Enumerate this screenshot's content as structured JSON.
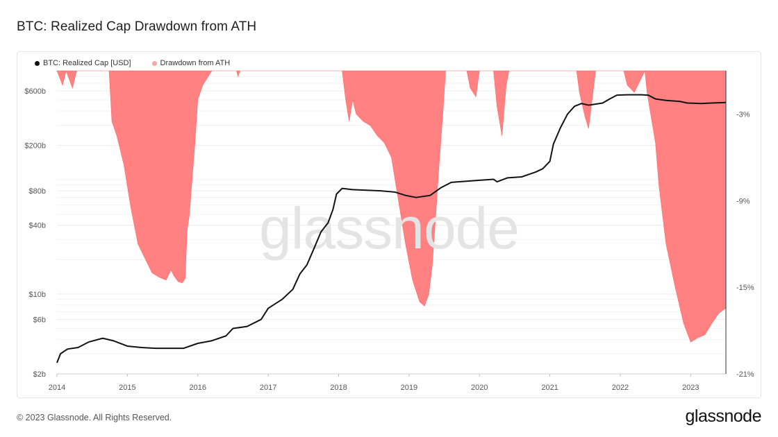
{
  "page": {
    "title": "BTC: Realized Cap Drawdown from ATH",
    "footer_copyright": "© 2023 Glassnode. All Rights Reserved.",
    "brand": "glassnode",
    "watermark": "glassnode"
  },
  "colors": {
    "line": "#111111",
    "drawdown_fill": "#ff6b6b",
    "legend_drawdown": "#f8a7a7",
    "grid": "#ececec"
  },
  "chart_data": {
    "type": "area",
    "title": "BTC: Realized Cap Drawdown from ATH",
    "legend_position": "top-left",
    "grid": true,
    "x_ticks": [
      "2014",
      "2015",
      "2016",
      "2017",
      "2018",
      "2019",
      "2020",
      "2021",
      "2022",
      "2023"
    ],
    "y_left": {
      "scale": "log",
      "range": [
        2,
        900
      ],
      "ticks": [
        {
          "value": 600,
          "label": "$600b"
        },
        {
          "value": 200,
          "label": "$200b"
        },
        {
          "value": 80,
          "label": "$80b"
        },
        {
          "value": 40,
          "label": "$40b"
        },
        {
          "value": 10,
          "label": "$10b"
        },
        {
          "value": 6,
          "label": "$6b"
        },
        {
          "value": 2,
          "label": "$2b"
        }
      ]
    },
    "y_right": {
      "scale": "linear",
      "range": [
        -21,
        0
      ],
      "ticks": [
        {
          "value": -3,
          "label": "-3%"
        },
        {
          "value": -9,
          "label": "-9%"
        },
        {
          "value": -15,
          "label": "-15%"
        },
        {
          "value": -21,
          "label": "-21%"
        }
      ]
    },
    "series": [
      {
        "name": "BTC: Realized Cap [USD]",
        "axis": "left",
        "points": [
          [
            2014.0,
            2.5
          ],
          [
            2014.05,
            3.0
          ],
          [
            2014.15,
            3.3
          ],
          [
            2014.3,
            3.4
          ],
          [
            2014.45,
            3.8
          ],
          [
            2014.65,
            4.1
          ],
          [
            2014.8,
            3.9
          ],
          [
            2015.0,
            3.5
          ],
          [
            2015.2,
            3.4
          ],
          [
            2015.4,
            3.35
          ],
          [
            2015.6,
            3.35
          ],
          [
            2015.8,
            3.35
          ],
          [
            2016.0,
            3.7
          ],
          [
            2016.2,
            3.9
          ],
          [
            2016.4,
            4.3
          ],
          [
            2016.5,
            5.0
          ],
          [
            2016.7,
            5.2
          ],
          [
            2016.9,
            6.0
          ],
          [
            2017.0,
            7.5
          ],
          [
            2017.2,
            9.0
          ],
          [
            2017.35,
            11
          ],
          [
            2017.45,
            15
          ],
          [
            2017.55,
            18
          ],
          [
            2017.65,
            25
          ],
          [
            2017.75,
            35
          ],
          [
            2017.85,
            42
          ],
          [
            2017.92,
            55
          ],
          [
            2017.97,
            75
          ],
          [
            2018.05,
            84
          ],
          [
            2018.2,
            82
          ],
          [
            2018.4,
            81
          ],
          [
            2018.6,
            80
          ],
          [
            2018.8,
            78
          ],
          [
            2018.95,
            73
          ],
          [
            2019.1,
            70
          ],
          [
            2019.3,
            73
          ],
          [
            2019.45,
            85
          ],
          [
            2019.6,
            95
          ],
          [
            2019.8,
            97
          ],
          [
            2020.0,
            99
          ],
          [
            2020.2,
            101
          ],
          [
            2020.25,
            96
          ],
          [
            2020.4,
            104
          ],
          [
            2020.6,
            106
          ],
          [
            2020.8,
            117
          ],
          [
            2020.9,
            125
          ],
          [
            2021.0,
            145
          ],
          [
            2021.05,
            205
          ],
          [
            2021.15,
            285
          ],
          [
            2021.25,
            375
          ],
          [
            2021.35,
            440
          ],
          [
            2021.45,
            465
          ],
          [
            2021.55,
            450
          ],
          [
            2021.75,
            470
          ],
          [
            2021.85,
            510
          ],
          [
            2021.95,
            550
          ],
          [
            2022.1,
            555
          ],
          [
            2022.3,
            555
          ],
          [
            2022.4,
            550
          ],
          [
            2022.5,
            510
          ],
          [
            2022.65,
            495
          ],
          [
            2022.85,
            485
          ],
          [
            2022.95,
            470
          ],
          [
            2023.15,
            465
          ],
          [
            2023.3,
            470
          ],
          [
            2023.5,
            475
          ]
        ]
      },
      {
        "name": "Drawdown from ATH",
        "axis": "right",
        "points": [
          [
            2014.0,
            0
          ],
          [
            2014.08,
            -1.0
          ],
          [
            2014.13,
            0
          ],
          [
            2014.22,
            -1.2
          ],
          [
            2014.28,
            0
          ],
          [
            2014.74,
            0
          ],
          [
            2014.78,
            -3.5
          ],
          [
            2014.85,
            -4.5
          ],
          [
            2014.95,
            -6.5
          ],
          [
            2015.05,
            -9.5
          ],
          [
            2015.15,
            -12.0
          ],
          [
            2015.25,
            -13.0
          ],
          [
            2015.35,
            -14.0
          ],
          [
            2015.45,
            -14.3
          ],
          [
            2015.55,
            -14.5
          ],
          [
            2015.62,
            -13.8
          ],
          [
            2015.66,
            -14.2
          ],
          [
            2015.72,
            -14.6
          ],
          [
            2015.78,
            -14.7
          ],
          [
            2015.82,
            -14.4
          ],
          [
            2015.85,
            -11.0
          ],
          [
            2015.88,
            -10.0
          ],
          [
            2015.92,
            -7.5
          ],
          [
            2015.96,
            -5.0
          ],
          [
            2016.0,
            -2.0
          ],
          [
            2016.07,
            -1.0
          ],
          [
            2016.2,
            0
          ],
          [
            2016.55,
            0
          ],
          [
            2016.57,
            -0.4
          ],
          [
            2016.6,
            0
          ],
          [
            2018.05,
            0
          ],
          [
            2018.1,
            -2.0
          ],
          [
            2018.15,
            -3.5
          ],
          [
            2018.2,
            -2.0
          ],
          [
            2018.25,
            -3.0
          ],
          [
            2018.35,
            -3.5
          ],
          [
            2018.45,
            -3.8
          ],
          [
            2018.55,
            -4.5
          ],
          [
            2018.65,
            -5.0
          ],
          [
            2018.75,
            -6.0
          ],
          [
            2018.85,
            -9.0
          ],
          [
            2018.95,
            -12.0
          ],
          [
            2019.05,
            -14.5
          ],
          [
            2019.15,
            -16.0
          ],
          [
            2019.22,
            -16.3
          ],
          [
            2019.28,
            -15.5
          ],
          [
            2019.33,
            -13.5
          ],
          [
            2019.38,
            -10.0
          ],
          [
            2019.42,
            -7.0
          ],
          [
            2019.48,
            -3.0
          ],
          [
            2019.52,
            0
          ],
          [
            2019.82,
            0
          ],
          [
            2019.87,
            -1.2
          ],
          [
            2019.95,
            -1.8
          ],
          [
            2020.0,
            0
          ],
          [
            2020.2,
            0
          ],
          [
            2020.25,
            -2.5
          ],
          [
            2020.32,
            -4.5
          ],
          [
            2020.38,
            -1.0
          ],
          [
            2020.42,
            0
          ],
          [
            2021.38,
            0
          ],
          [
            2021.42,
            -1.5
          ],
          [
            2021.5,
            -3.2
          ],
          [
            2021.55,
            -4.0
          ],
          [
            2021.6,
            -2.0
          ],
          [
            2021.65,
            0
          ],
          [
            2022.05,
            0
          ],
          [
            2022.1,
            -1.0
          ],
          [
            2022.2,
            -1.5
          ],
          [
            2022.35,
            0
          ],
          [
            2022.38,
            -1.5
          ],
          [
            2022.5,
            -5.0
          ],
          [
            2022.55,
            -8.0
          ],
          [
            2022.65,
            -12.0
          ],
          [
            2022.78,
            -15.0
          ],
          [
            2022.9,
            -17.5
          ],
          [
            2023.0,
            -18.8
          ],
          [
            2023.1,
            -18.5
          ],
          [
            2023.2,
            -18.3
          ],
          [
            2023.3,
            -17.5
          ],
          [
            2023.4,
            -16.8
          ],
          [
            2023.48,
            -16.5
          ],
          [
            2023.5,
            -16.5
          ]
        ]
      }
    ]
  }
}
